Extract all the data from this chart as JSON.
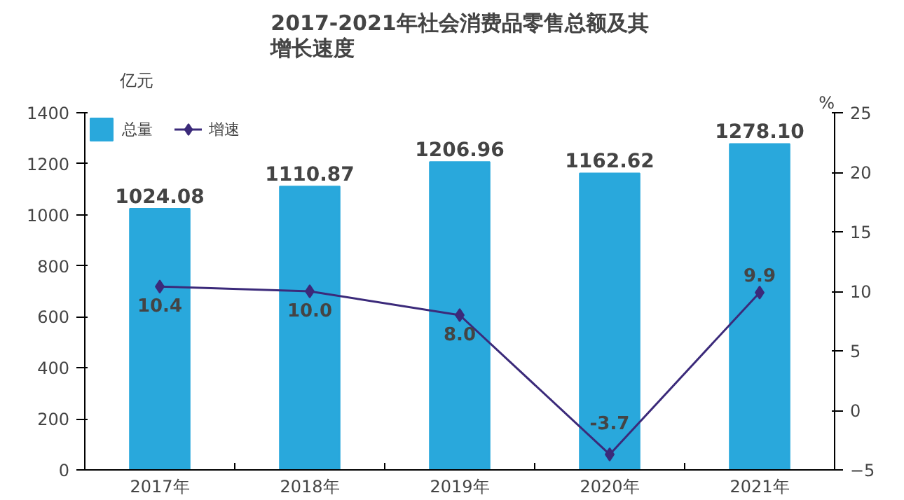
{
  "chart_data": {
    "type": "bar",
    "title": "2017-2021年社会消费品零售总额及其增长速度",
    "ylabel": "亿元",
    "y2label": "%",
    "categories": [
      "2017年",
      "2018年",
      "2019年",
      "2020年",
      "2021年"
    ],
    "series": [
      {
        "name": "总量",
        "color": "#29a8dc",
        "values": [
          1024.08,
          1110.87,
          1206.96,
          1162.62,
          1278.1
        ],
        "value_labels": [
          "1024.08",
          "1110.87",
          "1206.96",
          "1162.62",
          "1278.10"
        ]
      },
      {
        "name": "增速",
        "type": "line",
        "axis": "y2",
        "color": "#3b2a7a",
        "marker": "diamond",
        "values": [
          10.4,
          10.0,
          8.0,
          -3.7,
          9.9
        ],
        "value_labels": [
          "10.4",
          "10.0",
          "8.0",
          "-3.7",
          "9.9"
        ]
      }
    ],
    "ylim": [
      0,
      1400
    ],
    "yticks": [
      0,
      200,
      400,
      600,
      800,
      1000,
      1200,
      1400
    ],
    "y2lim": [
      -5,
      25
    ],
    "y2ticks": [
      -5,
      0,
      5,
      10,
      15,
      20,
      25
    ],
    "grid": false,
    "legend": "top left"
  }
}
